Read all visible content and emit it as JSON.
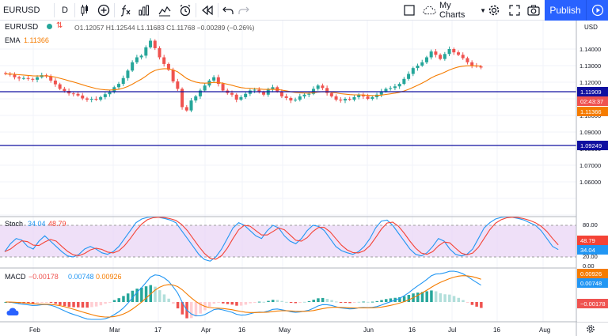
{
  "toolbar": {
    "symbol": "EURUSD",
    "interval": "D",
    "my_charts_label": "My Charts",
    "publish_label": "Publish"
  },
  "legend": {
    "symbol": "EURUSD",
    "ohlc": "O1.12057  H1.12544  L1.11683  C1.11768  −0.00289 (−0.26%)",
    "ema_label": "EMA",
    "ema_value": "1.11366"
  },
  "price_axis": {
    "currency": "USD",
    "ticks": [
      "1.14000",
      "1.13000",
      "1.12000",
      "1.11000",
      "1.10000",
      "1.09000",
      "1.08000",
      "1.07000",
      "1.06000"
    ],
    "badge_upper": "1.11909",
    "badge_countdown": "02:43:37",
    "badge_ema": "1.11366",
    "badge_lower": "1.09249"
  },
  "stoch": {
    "label": "Stoch",
    "k_value": "34.04",
    "d_value": "48.79",
    "ticks": [
      "80.00",
      "20.00",
      "0.00"
    ],
    "badge_d": "48.79",
    "badge_k": "34.04"
  },
  "macd": {
    "label": "MACD",
    "hist_value": "−0.00178",
    "macd_value": "0.00748",
    "signal_value": "0.00926",
    "badge_signal": "0.00926",
    "badge_macd": "0.00748",
    "badge_hist": "−0.00178"
  },
  "time_axis": [
    "Feb",
    "Mar",
    "17",
    "Apr",
    "16",
    "May",
    "Jun",
    "16",
    "Jul",
    "16",
    "Aug"
  ],
  "colors": {
    "up": "#26a69a",
    "down": "#ef5350",
    "ema": "#f57c00",
    "hline": "#1010a0",
    "stoch_k": "#2196f3",
    "stoch_d": "#f44336",
    "stoch_band": "#e1bee7",
    "accent": "#2962ff"
  },
  "icons": [
    "plus-circle-icon",
    "bar-style-icon",
    "fx-indicators-icon",
    "compare-icon",
    "alert-icon",
    "replay-icon",
    "undo-icon",
    "redo-icon",
    "layout-icon",
    "cloud-icon",
    "settings-icon",
    "fullscreen-icon",
    "camera-icon",
    "play-icon"
  ]
}
